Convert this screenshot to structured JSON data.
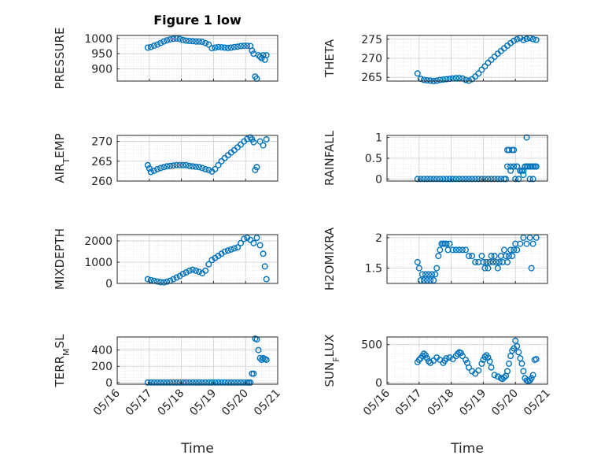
{
  "figure": {
    "title": "Figure 1 low",
    "xlabel": "Time",
    "marker_color": "#0072BD",
    "axis_color": "#262626",
    "grid_color": "#d9d9d9",
    "x_ticks": [
      "05/16",
      "05/17",
      "05/18",
      "05/19",
      "05/20",
      "05/21"
    ]
  },
  "chart_data": [
    {
      "type": "scatter",
      "id": "pressure",
      "ylabel": "PRESSURE",
      "ylim": [
        860,
        1010
      ],
      "yticks": [
        900,
        950,
        1000
      ],
      "grid": true,
      "x": [
        16.95,
        17.05,
        17.15,
        17.25,
        17.35,
        17.45,
        17.55,
        17.65,
        17.75,
        17.85,
        17.95,
        18.05,
        18.15,
        18.25,
        18.35,
        18.45,
        18.55,
        18.65,
        18.75,
        18.85,
        18.95,
        19.05,
        19.15,
        19.25,
        19.35,
        19.45,
        19.55,
        19.65,
        19.75,
        19.85,
        19.95,
        20.05,
        20.15,
        20.2,
        20.25,
        20.3,
        20.35,
        20.4,
        20.45,
        20.5,
        20.55,
        20.6,
        20.65
      ],
      "y": [
        970,
        972,
        976,
        980,
        985,
        990,
        994,
        997,
        999,
        1000,
        998,
        995,
        993,
        992,
        991,
        990,
        990,
        989,
        985,
        980,
        968,
        970,
        972,
        971,
        970,
        969,
        970,
        972,
        973,
        975,
        976,
        976,
        975,
        960,
        950,
        875,
        868,
        945,
        940,
        935,
        945,
        930,
        945
      ]
    },
    {
      "type": "scatter",
      "id": "theta",
      "ylabel": "THETA",
      "ylim": [
        264,
        276
      ],
      "yticks": [
        265,
        270,
        275
      ],
      "grid": true,
      "x": [
        16.95,
        17.05,
        17.15,
        17.25,
        17.35,
        17.45,
        17.55,
        17.65,
        17.75,
        17.85,
        17.95,
        18.05,
        18.15,
        18.25,
        18.35,
        18.45,
        18.55,
        18.65,
        18.75,
        18.85,
        18.95,
        19.05,
        19.15,
        19.25,
        19.35,
        19.45,
        19.55,
        19.65,
        19.75,
        19.85,
        19.95,
        20.05,
        20.15,
        20.25,
        20.35,
        20.45,
        20.55,
        20.65
      ],
      "y": [
        266,
        264.6,
        264.3,
        264.2,
        264.1,
        264.0,
        264.1,
        264.3,
        264.4,
        264.5,
        264.6,
        264.7,
        264.8,
        264.8,
        264.7,
        264.3,
        264.1,
        264.5,
        265.2,
        266.0,
        267.0,
        267.9,
        268.8,
        269.6,
        270.4,
        271.2,
        271.9,
        272.6,
        273.3,
        274.0,
        274.6,
        275.0,
        275.3,
        274.8,
        275.1,
        275.3,
        275.0,
        274.8
      ]
    },
    {
      "type": "scatter",
      "id": "air_temp",
      "ylabel": "AIR_TEMP",
      "ylim": [
        260,
        271.5
      ],
      "yticks": [
        260,
        265,
        270
      ],
      "grid": true,
      "x": [
        16.95,
        17.0,
        17.05,
        17.15,
        17.25,
        17.35,
        17.45,
        17.55,
        17.65,
        17.75,
        17.85,
        17.95,
        18.05,
        18.15,
        18.25,
        18.35,
        18.45,
        18.55,
        18.65,
        18.75,
        18.85,
        18.95,
        19.05,
        19.15,
        19.25,
        19.35,
        19.45,
        19.55,
        19.65,
        19.75,
        19.85,
        19.95,
        20.05,
        20.15,
        20.2,
        20.25,
        20.3,
        20.35,
        20.45,
        20.55,
        20.65
      ],
      "y": [
        264,
        263.2,
        262.3,
        262.6,
        263.0,
        263.3,
        263.5,
        263.7,
        263.8,
        263.9,
        264.0,
        264.0,
        264.0,
        264.0,
        263.8,
        263.7,
        263.6,
        263.5,
        263.3,
        263.0,
        262.8,
        262.4,
        263.0,
        264.0,
        265.0,
        265.8,
        266.5,
        267.2,
        267.8,
        268.5,
        269.2,
        270.0,
        270.6,
        271.0,
        270.5,
        269.8,
        262.8,
        263.5,
        270.0,
        269.0,
        270.5
      ]
    },
    {
      "type": "scatter",
      "id": "rainfall",
      "ylabel": "RAINFALL",
      "ylim": [
        -0.05,
        1.05
      ],
      "yticks": [
        0,
        0.5,
        1
      ],
      "grid": true,
      "x": [
        16.95,
        17.05,
        17.15,
        17.25,
        17.35,
        17.45,
        17.55,
        17.65,
        17.75,
        17.85,
        17.95,
        18.05,
        18.15,
        18.25,
        18.35,
        18.45,
        18.55,
        18.65,
        18.75,
        18.85,
        18.95,
        19.05,
        19.15,
        19.25,
        19.35,
        19.45,
        19.55,
        19.65,
        19.7,
        19.75,
        19.8,
        19.85,
        19.9,
        19.95,
        20.0,
        20.05,
        20.1,
        20.15,
        20.2,
        20.25,
        20.3,
        20.35,
        20.4,
        20.45,
        20.5,
        20.55,
        20.6,
        20.65,
        19.75,
        19.85,
        19.95,
        20.05,
        20.15,
        20.25,
        20.35,
        20.45,
        20.55,
        20.65
      ],
      "y": [
        0,
        0,
        0,
        0,
        0,
        0,
        0,
        0,
        0,
        0,
        0,
        0,
        0,
        0,
        0,
        0,
        0,
        0,
        0,
        0,
        0,
        0,
        0,
        0,
        0,
        0,
        0,
        0,
        0,
        0.3,
        0.7,
        0.3,
        0.7,
        0.3,
        0,
        0.3,
        0,
        0.2,
        0.2,
        0.2,
        0.3,
        0.3,
        0.3,
        0.3,
        0.3,
        0.3,
        0.3,
        0.3,
        0.7,
        0.2,
        0.7,
        0.3,
        0.2,
        0.1,
        1.0,
        0,
        0,
        0.3
      ]
    },
    {
      "type": "scatter",
      "id": "mixdepth",
      "ylabel": "MIXDEPTH",
      "ylim": [
        0,
        2300
      ],
      "yticks": [
        0,
        1000,
        2000
      ],
      "grid": true,
      "x": [
        16.95,
        17.05,
        17.15,
        17.25,
        17.35,
        17.45,
        17.55,
        17.65,
        17.75,
        17.85,
        17.95,
        18.05,
        18.15,
        18.25,
        18.35,
        18.45,
        18.55,
        18.65,
        18.75,
        18.85,
        18.95,
        19.05,
        19.15,
        19.25,
        19.35,
        19.45,
        19.55,
        19.65,
        19.75,
        19.85,
        19.95,
        20.05,
        20.15,
        20.25,
        20.35,
        20.45,
        20.55,
        20.6,
        20.65
      ],
      "y": [
        200,
        160,
        120,
        90,
        60,
        50,
        80,
        130,
        200,
        280,
        350,
        450,
        520,
        600,
        650,
        600,
        550,
        480,
        600,
        900,
        1100,
        1200,
        1300,
        1400,
        1500,
        1550,
        1600,
        1650,
        1700,
        1900,
        2100,
        2150,
        2050,
        1900,
        2150,
        1800,
        1400,
        800,
        200
      ]
    },
    {
      "type": "scatter",
      "id": "h2omixra",
      "ylabel": "H2OMIXRA",
      "ylim": [
        1.25,
        2.05
      ],
      "yticks": [
        1.5,
        2
      ],
      "grid": true,
      "x": [
        16.95,
        17.0,
        17.05,
        17.1,
        17.15,
        17.2,
        17.25,
        17.3,
        17.35,
        17.4,
        17.45,
        17.5,
        17.55,
        17.6,
        17.65,
        17.7,
        17.75,
        17.8,
        17.85,
        17.9,
        17.95,
        18.05,
        18.15,
        18.25,
        18.35,
        18.45,
        18.55,
        18.65,
        18.75,
        18.85,
        18.95,
        19.0,
        19.05,
        19.1,
        19.15,
        19.2,
        19.25,
        19.3,
        19.35,
        19.4,
        19.45,
        19.5,
        19.55,
        19.6,
        19.65,
        19.7,
        19.75,
        19.8,
        19.85,
        19.9,
        19.95,
        20.0,
        20.05,
        20.15,
        20.25,
        20.35,
        20.45,
        20.55,
        20.65,
        20.5
      ],
      "y": [
        1.6,
        1.5,
        1.3,
        1.4,
        1.3,
        1.4,
        1.3,
        1.4,
        1.3,
        1.4,
        1.3,
        1.4,
        1.5,
        1.7,
        1.8,
        1.9,
        1.9,
        1.9,
        1.9,
        1.8,
        1.9,
        1.8,
        1.8,
        1.8,
        1.8,
        1.8,
        1.7,
        1.7,
        1.6,
        1.6,
        1.7,
        1.6,
        1.5,
        1.6,
        1.5,
        1.6,
        1.7,
        1.6,
        1.7,
        1.6,
        1.5,
        1.6,
        1.7,
        1.6,
        1.8,
        1.7,
        1.6,
        1.7,
        1.8,
        1.7,
        1.8,
        1.9,
        1.8,
        1.9,
        2.0,
        1.9,
        2.0,
        1.9,
        2.0,
        1.5
      ]
    },
    {
      "type": "scatter",
      "id": "terr_msl",
      "ylabel": "TERR_MSL",
      "ylim": [
        -20,
        560
      ],
      "yticks": [
        0,
        200,
        400
      ],
      "grid": true,
      "x": [
        16.95,
        17.05,
        17.15,
        17.25,
        17.35,
        17.45,
        17.55,
        17.65,
        17.75,
        17.85,
        17.95,
        18.05,
        18.15,
        18.25,
        18.35,
        18.45,
        18.55,
        18.65,
        18.75,
        18.85,
        18.95,
        19.05,
        19.15,
        19.25,
        19.35,
        19.45,
        19.55,
        19.65,
        19.75,
        19.85,
        19.95,
        20.05,
        20.1,
        20.15,
        20.2,
        20.25,
        20.3,
        20.35,
        20.4,
        20.45,
        20.5,
        20.55,
        20.6,
        20.65
      ],
      "y": [
        0,
        0,
        0,
        0,
        0,
        0,
        0,
        0,
        0,
        0,
        0,
        0,
        0,
        0,
        0,
        0,
        0,
        0,
        0,
        0,
        0,
        0,
        0,
        0,
        0,
        0,
        0,
        0,
        0,
        0,
        0,
        0,
        0,
        0,
        110,
        110,
        540,
        530,
        400,
        300,
        280,
        300,
        290,
        280
      ]
    },
    {
      "type": "scatter",
      "id": "sun_flux",
      "ylabel": "SUN_FLUX",
      "ylim": [
        -20,
        600
      ],
      "yticks": [
        0,
        500
      ],
      "grid": true,
      "x": [
        16.95,
        17.0,
        17.05,
        17.1,
        17.15,
        17.2,
        17.25,
        17.3,
        17.35,
        17.45,
        17.55,
        17.65,
        17.75,
        17.8,
        17.85,
        17.95,
        18.05,
        18.15,
        18.2,
        18.25,
        18.3,
        18.35,
        18.45,
        18.5,
        18.55,
        18.65,
        18.75,
        18.85,
        18.95,
        19.0,
        19.05,
        19.1,
        19.15,
        19.2,
        19.25,
        19.35,
        19.45,
        19.55,
        19.6,
        19.65,
        19.7,
        19.75,
        19.8,
        19.85,
        19.9,
        19.95,
        20.0,
        20.05,
        20.1,
        20.15,
        20.2,
        20.25,
        20.3,
        20.35,
        20.4,
        20.45,
        20.5,
        20.55,
        20.6,
        20.65
      ],
      "y": [
        270,
        300,
        320,
        350,
        380,
        360,
        320,
        280,
        260,
        290,
        330,
        300,
        260,
        290,
        320,
        330,
        310,
        350,
        380,
        400,
        390,
        350,
        300,
        260,
        200,
        150,
        120,
        160,
        250,
        300,
        340,
        360,
        330,
        280,
        200,
        100,
        80,
        60,
        50,
        70,
        90,
        150,
        250,
        350,
        420,
        450,
        550,
        480,
        400,
        320,
        250,
        150,
        60,
        30,
        20,
        30,
        60,
        100,
        300,
        310
      ]
    }
  ]
}
